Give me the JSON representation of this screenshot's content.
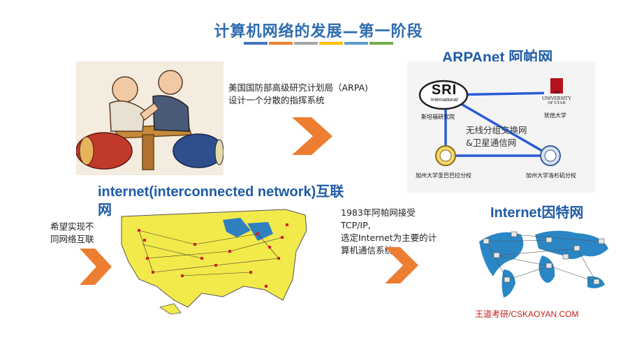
{
  "slide": {
    "title": "计算机网络的发展—第一阶段",
    "color_bars": [
      "#4472c4",
      "#ed7d31",
      "#a5a5a5",
      "#ffc000",
      "#5b9bd5",
      "#70ad47"
    ]
  },
  "arpa": {
    "heading": "ARPAnet 阿帕网",
    "description_line1": "美国国防部高级研究计划局（ARPA)",
    "description_line2": "设计一个分散的指挥系统",
    "diagram": {
      "node_sri_logo": "SRI",
      "node_sri_sub": "International",
      "node_sri_label": "斯坦福研究院",
      "node_utah_logo_1": "THE",
      "node_utah_logo_2": "UNIVERSITY",
      "node_utah_logo_3": "OF UTAH",
      "node_utah_label": "犹他大学",
      "node_ucsb_label": "加州大学圣巴巴拉分校",
      "node_ucla_label": "加州大学洛杉矶分校",
      "center_text_1": "无线分组交换网",
      "center_text_2": "&卫星通信网"
    }
  },
  "internet_section": {
    "heading_line1": "internet(interconnected network)互联",
    "heading_line2": "网",
    "wish_line1": "希望实现不",
    "wish_line2": "同网络互联"
  },
  "milestone": {
    "line1": "1983年阿帕网接受",
    "line2": "TCP/IP,",
    "line3": "选定Internet为主要的计",
    "line4": "算机通信系统。"
  },
  "internet_global": {
    "heading": "Internet因特网"
  },
  "credit": "王道考研/CSKAOYAN.COM"
}
